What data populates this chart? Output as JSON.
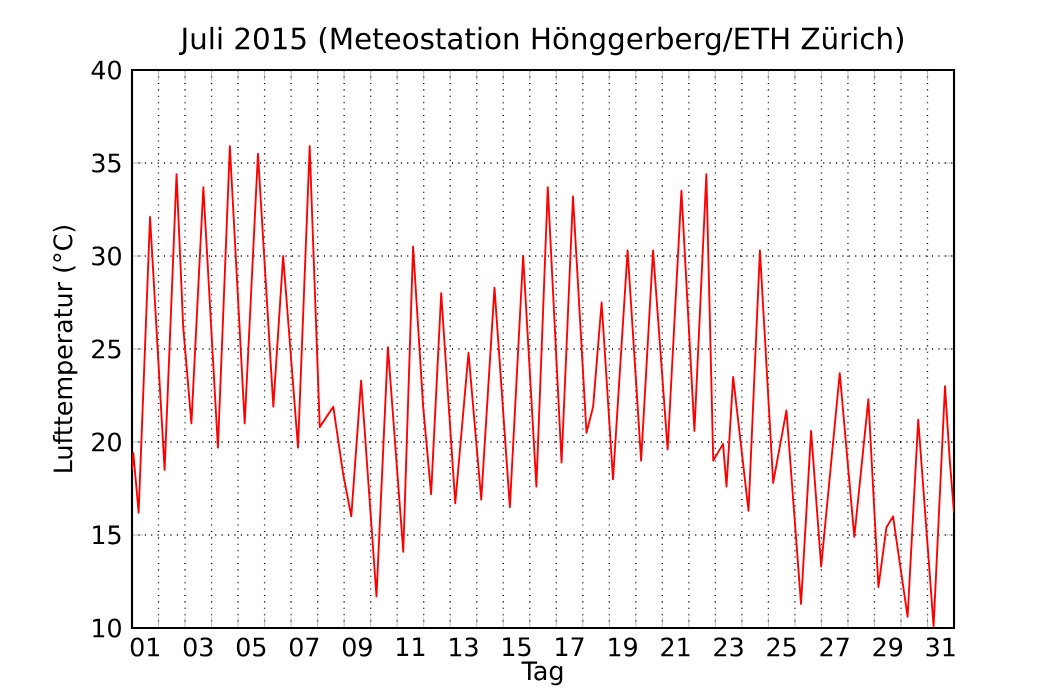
{
  "chart_data": {
    "type": "line",
    "title": "Juli 2015  (Meteostation Hönggerberg/ETH Zürich)",
    "xlabel": "Tag",
    "ylabel": "Lufttemperatur (°C)",
    "xlim": [
      1,
      32
    ],
    "ylim": [
      10,
      40
    ],
    "yticks": [
      10,
      15,
      20,
      25,
      30,
      35,
      40
    ],
    "xticks": [
      {
        "value": 1,
        "label": null
      },
      {
        "value": 2,
        "label": null
      },
      {
        "value": 3,
        "label": null
      },
      {
        "value": 4,
        "label": null
      },
      {
        "value": 5,
        "label": null
      },
      {
        "value": 6,
        "label": null
      },
      {
        "value": 7,
        "label": null
      },
      {
        "value": 8,
        "label": null
      },
      {
        "value": 9,
        "label": null
      },
      {
        "value": 10,
        "label": null
      },
      {
        "value": 11,
        "label": null
      },
      {
        "value": 12,
        "label": null
      },
      {
        "value": 13,
        "label": null
      },
      {
        "value": 14,
        "label": null
      },
      {
        "value": 15,
        "label": null
      },
      {
        "value": 16,
        "label": null
      },
      {
        "value": 17,
        "label": null
      },
      {
        "value": 18,
        "label": null
      },
      {
        "value": 19,
        "label": null
      },
      {
        "value": 20,
        "label": null
      },
      {
        "value": 21,
        "label": null
      },
      {
        "value": 22,
        "label": null
      },
      {
        "value": 23,
        "label": null
      },
      {
        "value": 24,
        "label": null
      },
      {
        "value": 25,
        "label": null
      },
      {
        "value": 26,
        "label": null
      },
      {
        "value": 27,
        "label": null
      },
      {
        "value": 28,
        "label": null
      },
      {
        "value": 29,
        "label": null
      },
      {
        "value": 30,
        "label": null
      },
      {
        "value": 31,
        "label": null
      },
      {
        "value": 32,
        "label": null
      },
      {
        "value": 1.5,
        "label": "01"
      },
      {
        "value": 3.5,
        "label": "03"
      },
      {
        "value": 5.5,
        "label": "05"
      },
      {
        "value": 7.5,
        "label": "07"
      },
      {
        "value": 9.5,
        "label": "09"
      },
      {
        "value": 11.5,
        "label": "11"
      },
      {
        "value": 13.5,
        "label": "13"
      },
      {
        "value": 15.5,
        "label": "15"
      },
      {
        "value": 17.5,
        "label": "17"
      },
      {
        "value": 19.5,
        "label": "19"
      },
      {
        "value": 21.5,
        "label": "21"
      },
      {
        "value": 23.5,
        "label": "23"
      },
      {
        "value": 25.5,
        "label": "25"
      },
      {
        "value": 27.5,
        "label": "27"
      },
      {
        "value": 29.5,
        "label": "29"
      },
      {
        "value": 31.5,
        "label": "31"
      }
    ],
    "grid": true,
    "marker": "none",
    "line_style": "solid",
    "series": [
      {
        "color": "#ff0000",
        "x": [
          1.0,
          1.05,
          1.25,
          1.68,
          2.23,
          2.68,
          2.93,
          3.24,
          3.69,
          4.24,
          4.69,
          5.25,
          5.75,
          6.33,
          6.7,
          7.26,
          7.7,
          8.08,
          8.59,
          8.96,
          9.27,
          9.64,
          10.22,
          10.65,
          11.23,
          11.6,
          11.98,
          12.28,
          12.66,
          13.19,
          13.69,
          14.17,
          14.67,
          15.25,
          15.75,
          16.25,
          16.68,
          17.2,
          17.63,
          18.14,
          18.39,
          18.71,
          19.14,
          19.69,
          20.2,
          20.65,
          21.2,
          21.72,
          22.21,
          22.66,
          22.92,
          23.29,
          23.42,
          23.67,
          24.25,
          24.68,
          25.18,
          25.68,
          26.23,
          26.61,
          26.99,
          27.69,
          28.24,
          28.77,
          29.15,
          29.45,
          29.7,
          30.25,
          30.65,
          31.23,
          31.66,
          31.84,
          32.0
        ],
        "values": [
          18.5,
          19.4,
          16.2,
          32.1,
          18.5,
          34.4,
          26.2,
          21.0,
          33.7,
          19.7,
          35.9,
          21.0,
          35.5,
          21.9,
          30.0,
          19.7,
          35.9,
          20.8,
          21.9,
          18.3,
          16.0,
          23.3,
          11.7,
          25.1,
          14.1,
          30.5,
          21.9,
          17.2,
          28.0,
          16.7,
          24.8,
          16.9,
          28.3,
          16.5,
          30.0,
          17.6,
          33.7,
          18.9,
          33.2,
          20.5,
          21.9,
          27.5,
          18.0,
          30.3,
          19.0,
          30.3,
          19.6,
          33.5,
          20.6,
          34.4,
          19.0,
          19.9,
          17.6,
          23.5,
          16.3,
          30.3,
          17.8,
          21.7,
          11.3,
          20.6,
          13.3,
          23.7,
          14.9,
          22.3,
          12.2,
          15.4,
          16.0,
          10.6,
          21.2,
          10.1,
          23.0,
          19.0,
          16.2
        ]
      }
    ]
  }
}
